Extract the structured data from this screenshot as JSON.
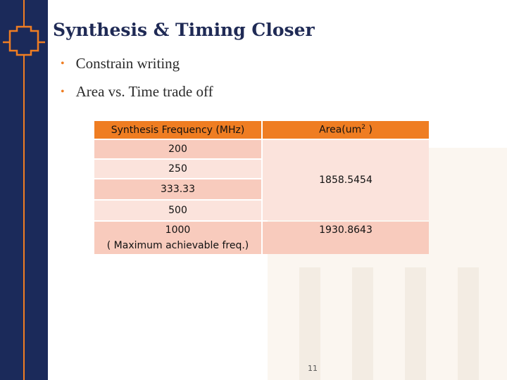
{
  "header": {
    "title": "Synthesis & Timing Closer"
  },
  "bullets": [
    "Constrain writing",
    "Area vs. Time trade off"
  ],
  "table": {
    "columns": [
      {
        "text": "Synthesis Frequency (MHz)"
      },
      {
        "text": "Area(um",
        "sup": "2",
        "after": " )"
      }
    ],
    "rows": [
      [
        "200",
        "1858.5454"
      ],
      [
        "250"
      ],
      [
        "333.33"
      ],
      [
        "500"
      ],
      [
        {
          "text": "1000",
          "note": "( Maximum achievable freq.)"
        },
        "1930.8643"
      ]
    ]
  },
  "page_number": "11"
}
